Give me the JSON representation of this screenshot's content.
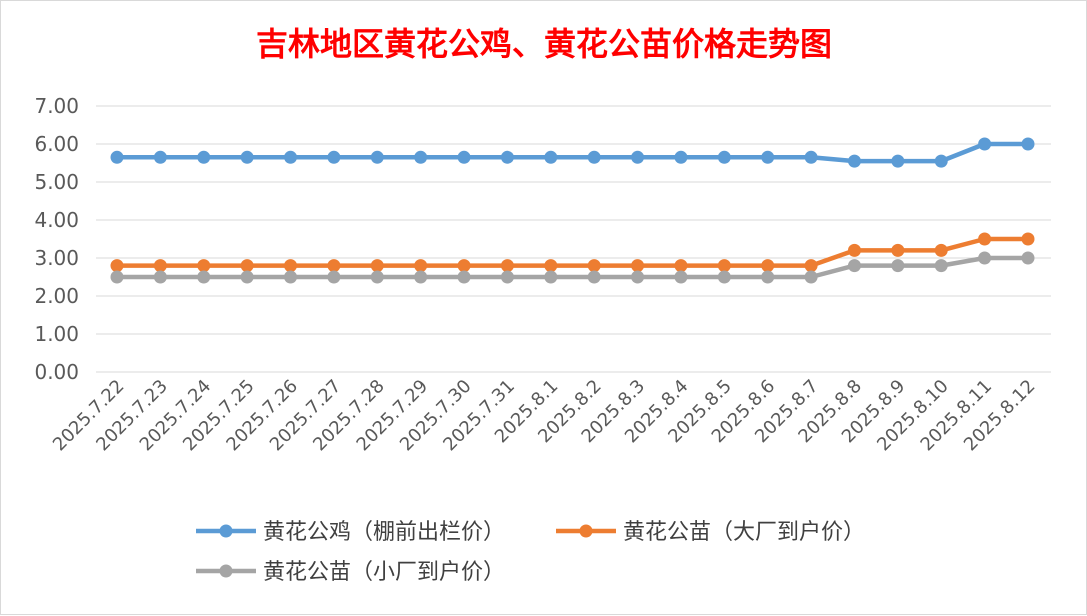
{
  "chart_data": {
    "type": "line",
    "title": "吉林地区黄花公鸡、黄花公苗价格走势图",
    "categories": [
      "2025.7.22",
      "2025.7.23",
      "2025.7.24",
      "2025.7.25",
      "2025.7.26",
      "2025.7.27",
      "2025.7.28",
      "2025.7.29",
      "2025.7.30",
      "2025.7.31",
      "2025.8.1",
      "2025.8.2",
      "2025.8.3",
      "2025.8.4",
      "2025.8.5",
      "2025.8.6",
      "2025.8.7",
      "2025.8.8",
      "2025.8.9",
      "2025.8.10",
      "2025.8.11",
      "2025.8.12"
    ],
    "series": [
      {
        "name": "黄花公鸡（棚前出栏价）",
        "color": "#5b9bd5",
        "values": [
          5.65,
          5.65,
          5.65,
          5.65,
          5.65,
          5.65,
          5.65,
          5.65,
          5.65,
          5.65,
          5.65,
          5.65,
          5.65,
          5.65,
          5.65,
          5.65,
          5.65,
          5.55,
          5.55,
          5.55,
          6.0,
          6.0
        ]
      },
      {
        "name": "黄花公苗（大厂到户价）",
        "color": "#ed7d31",
        "values": [
          2.8,
          2.8,
          2.8,
          2.8,
          2.8,
          2.8,
          2.8,
          2.8,
          2.8,
          2.8,
          2.8,
          2.8,
          2.8,
          2.8,
          2.8,
          2.8,
          2.8,
          3.2,
          3.2,
          3.2,
          3.5,
          3.5
        ]
      },
      {
        "name": "黄花公苗（小厂到户价）",
        "color": "#a5a5a5",
        "values": [
          2.5,
          2.5,
          2.5,
          2.5,
          2.5,
          2.5,
          2.5,
          2.5,
          2.5,
          2.5,
          2.5,
          2.5,
          2.5,
          2.5,
          2.5,
          2.5,
          2.5,
          2.8,
          2.8,
          2.8,
          3.0,
          3.0
        ]
      }
    ],
    "yticks": [
      "7.00",
      "6.00",
      "5.00",
      "4.00",
      "3.00",
      "2.00",
      "1.00",
      "0.00"
    ],
    "ylim": [
      0,
      7
    ],
    "grid": true,
    "legend_position": "bottom",
    "title_color": "#ff0000"
  }
}
